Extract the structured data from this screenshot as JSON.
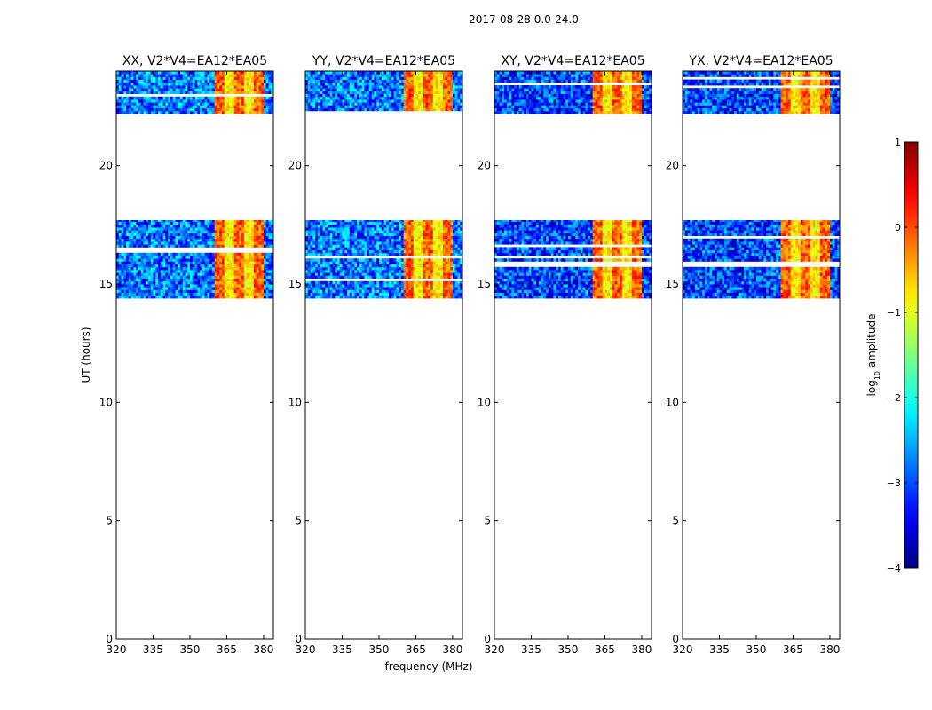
{
  "figure_title": "2017-08-28 0.0-24.0",
  "chart_data": {
    "type": "heatmap",
    "xlabel": "frequency (MHz)",
    "ylabel": "UT (hours)",
    "xlim": [
      320,
      384
    ],
    "ylim": [
      0,
      24
    ],
    "xticks": [
      320,
      335,
      350,
      365,
      380
    ],
    "yticks": [
      0,
      5,
      10,
      15,
      20
    ],
    "x_tick_labels": [
      "320",
      "335",
      "350",
      "365",
      "380"
    ],
    "y_tick_labels": [
      "0",
      "5",
      "10",
      "15",
      "20"
    ],
    "data_time_blocks_hours": [
      [
        14.4,
        17.7
      ],
      [
        22.2,
        24.0
      ]
    ],
    "high_amplitude_band_mhz": [
      360,
      380
    ],
    "panels": [
      {
        "title": "XX, V2*V4=EA12*EA05",
        "pol": "XX"
      },
      {
        "title": "YY, V2*V4=EA12*EA05",
        "pol": "YY"
      },
      {
        "title": "XY, V2*V4=EA12*EA05",
        "pol": "XY"
      },
      {
        "title": "YX, V2*V4=EA12*EA05",
        "pol": "YX"
      }
    ],
    "colorbar": {
      "label": "log10 amplitude",
      "label_main": "log",
      "label_sub": "10",
      "label_tail": " amplitude",
      "min": -4,
      "max": 1,
      "ticks": [
        1,
        0,
        -1,
        -2,
        -3,
        -4
      ],
      "tick_labels": [
        "1",
        "0",
        "−1",
        "−2",
        "−3",
        "−4"
      ],
      "colormap": "jet"
    }
  }
}
